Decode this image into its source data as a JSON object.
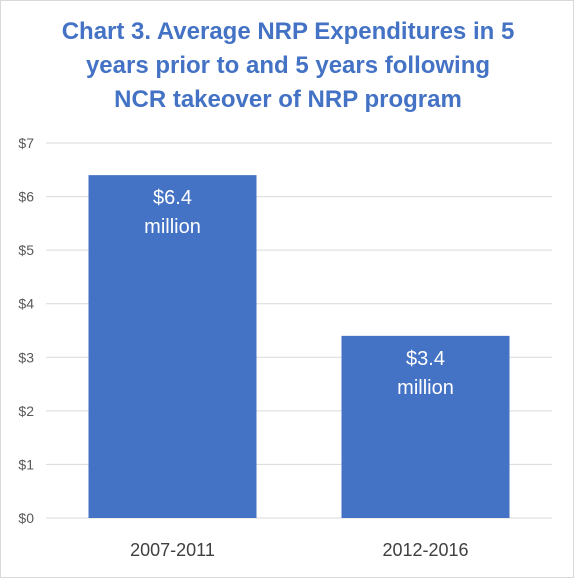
{
  "chart_data": {
    "type": "bar",
    "title": "Chart 3. Average NRP Expenditures in 5\nyears prior to and 5 years following\nNCR takeover of NRP program",
    "categories": [
      "2007-2011",
      "2012-2016"
    ],
    "values": [
      6.4,
      3.4
    ],
    "data_labels": [
      [
        "$6.4",
        "million"
      ],
      [
        "$3.4",
        "million"
      ]
    ],
    "y_ticks": [
      {
        "value": 0,
        "label": "$0"
      },
      {
        "value": 1,
        "label": "$1"
      },
      {
        "value": 2,
        "label": "$2"
      },
      {
        "value": 3,
        "label": "$3"
      },
      {
        "value": 4,
        "label": "$4"
      },
      {
        "value": 5,
        "label": "$5"
      },
      {
        "value": 6,
        "label": "$6"
      },
      {
        "value": 7,
        "label": "$7"
      }
    ],
    "ylim": [
      0,
      7
    ],
    "xlabel": "",
    "ylabel": "",
    "grid": true,
    "legend": "none",
    "colors": {
      "bar": "#4472c4",
      "title": "#4472c4",
      "grid": "#d9d9d9"
    }
  }
}
